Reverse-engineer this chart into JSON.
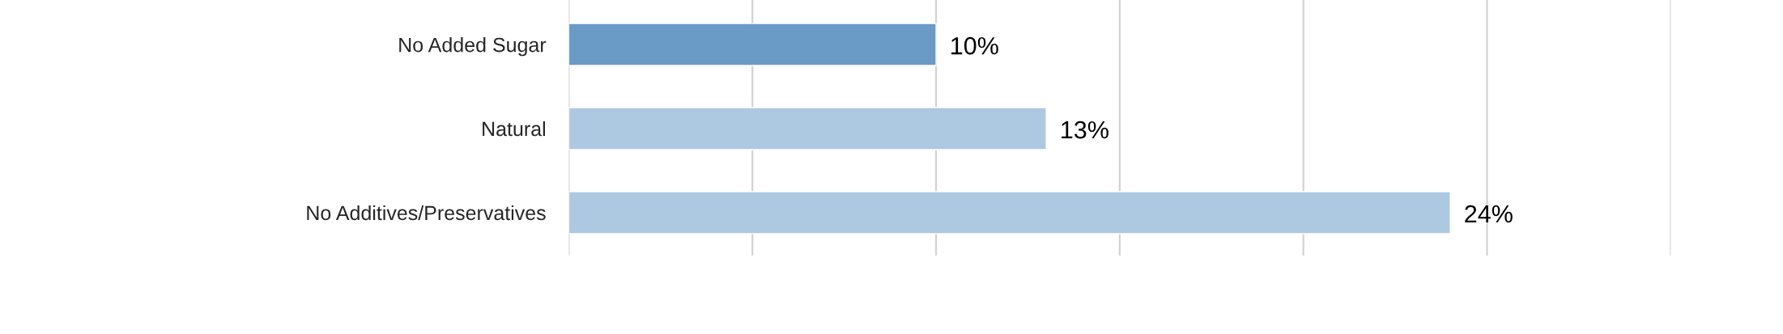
{
  "chart_data": {
    "type": "bar",
    "orientation": "horizontal",
    "categories": [
      "No Added Sugar",
      "Natural",
      "No Additives/Preservatives"
    ],
    "values": [
      10,
      13,
      24
    ],
    "value_labels": [
      "10%",
      "13%",
      "24%"
    ],
    "colors": [
      "#5b9bd5",
      "#a4c8ea",
      "#a4c8ea"
    ],
    "xlim": [
      0,
      30
    ],
    "xticks": [
      {
        "value": 0,
        "label": null
      },
      {
        "value": 5,
        "label": null
      },
      {
        "value": 10,
        "label": null
      },
      {
        "value": 15,
        "label": null
      },
      {
        "value": 20,
        "label": null
      },
      {
        "value": 25,
        "label": null
      },
      {
        "value": 30,
        "label": null
      }
    ],
    "grid": "x",
    "legend": false
  }
}
